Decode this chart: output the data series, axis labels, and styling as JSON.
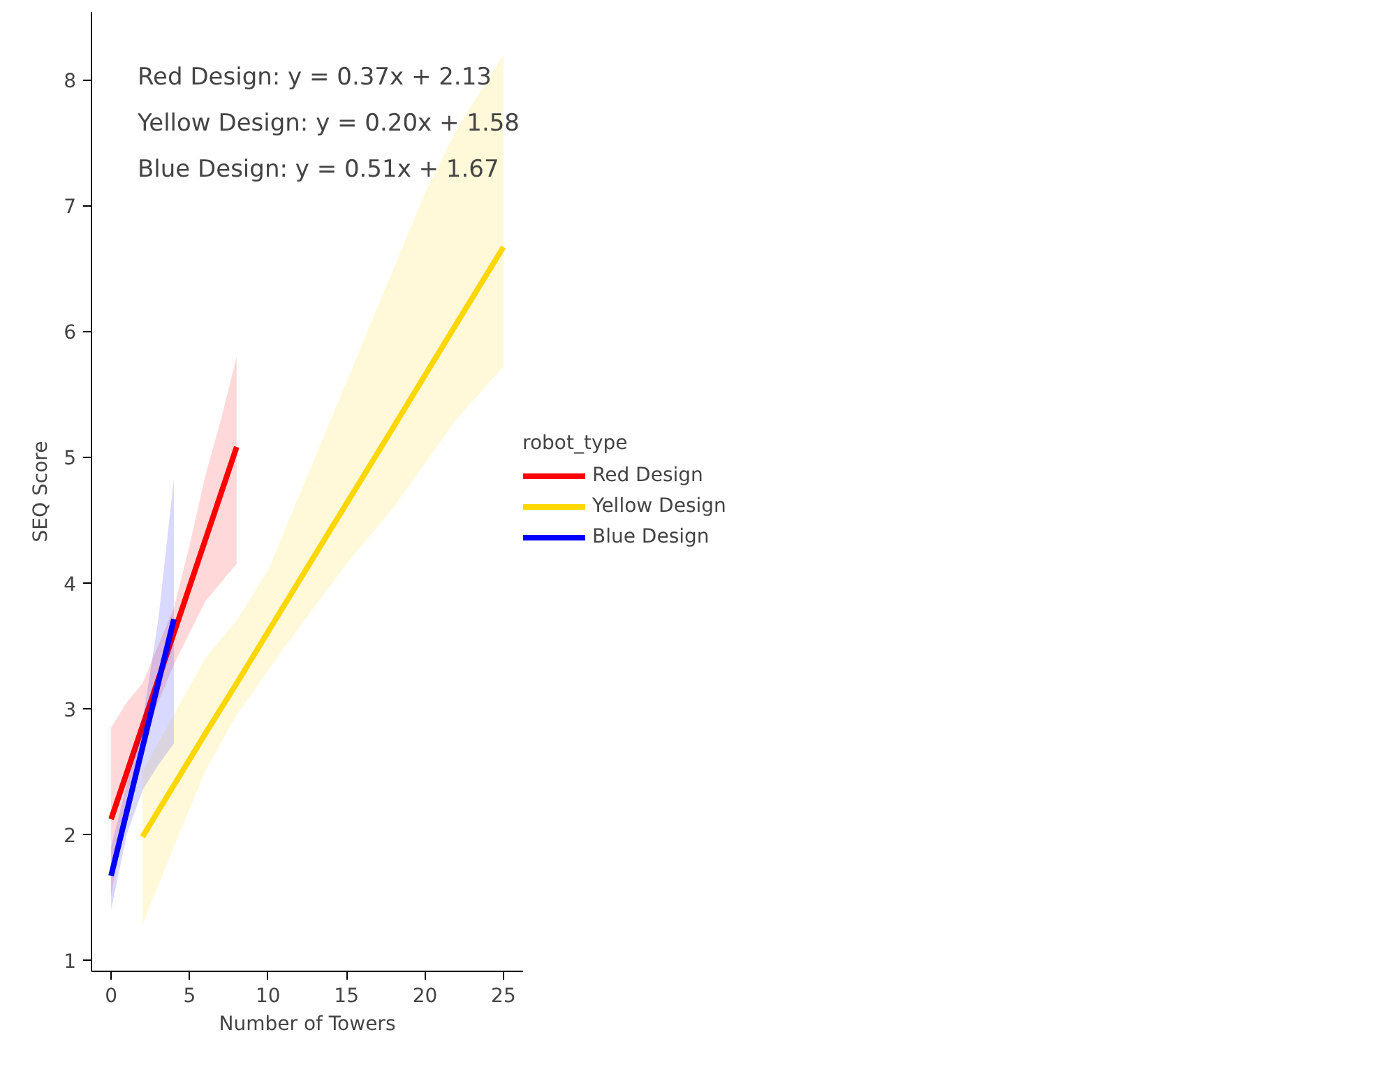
{
  "chart_data": {
    "type": "line",
    "xlabel": "Number of Towers",
    "ylabel": "SEQ Score",
    "legend_title": "robot_type",
    "legend": "right",
    "grid": false,
    "marker": "none",
    "line_style": "solid",
    "annotations": [
      "Red Design: y = 0.37x + 2.13",
      "Yellow Design: y = 0.20x + 1.58",
      "Blue Design: y = 0.51x + 1.67"
    ],
    "xlim": [
      -1.25,
      26.25
    ],
    "xticks": [
      0,
      5,
      10,
      15,
      20,
      25
    ],
    "ylim": [
      0.91,
      8.54
    ],
    "yticks": [
      1,
      2,
      3,
      4,
      5,
      6,
      7,
      8
    ],
    "series": [
      {
        "name": "Red Design",
        "color": "#ff0000",
        "x": [
          0,
          1,
          2,
          3,
          4,
          5,
          6,
          7,
          8
        ],
        "values": [
          2.12,
          2.49,
          2.86,
          3.23,
          3.6,
          3.97,
          4.34,
          4.71,
          5.08
        ],
        "lower": [
          1.5,
          2.3,
          2.75,
          3.05,
          3.35,
          3.6,
          3.85,
          4.0,
          4.15
        ],
        "upper": [
          2.85,
          3.05,
          3.2,
          3.5,
          3.8,
          4.3,
          4.85,
          5.3,
          5.8
        ]
      },
      {
        "name": "Yellow Design",
        "color": "#ffd700",
        "x": [
          2,
          4,
          6,
          8,
          10,
          12,
          15,
          18,
          20,
          22,
          25
        ],
        "values": [
          1.98,
          2.39,
          2.8,
          3.2,
          3.61,
          4.02,
          4.63,
          5.24,
          5.65,
          6.06,
          6.67
        ],
        "lower": [
          1.28,
          1.9,
          2.5,
          2.95,
          3.3,
          3.65,
          4.15,
          4.6,
          4.95,
          5.3,
          5.72
        ],
        "upper": [
          2.5,
          2.95,
          3.4,
          3.7,
          4.1,
          4.7,
          5.6,
          6.5,
          7.1,
          7.6,
          8.2
        ]
      },
      {
        "name": "Blue Design",
        "color": "#0000ff",
        "x": [
          0,
          1,
          2,
          3,
          4
        ],
        "values": [
          1.67,
          2.18,
          2.69,
          3.2,
          3.71
        ],
        "lower": [
          1.4,
          2.0,
          2.35,
          2.55,
          2.72
        ],
        "upper": [
          1.9,
          2.4,
          2.9,
          3.7,
          4.83
        ]
      }
    ]
  }
}
